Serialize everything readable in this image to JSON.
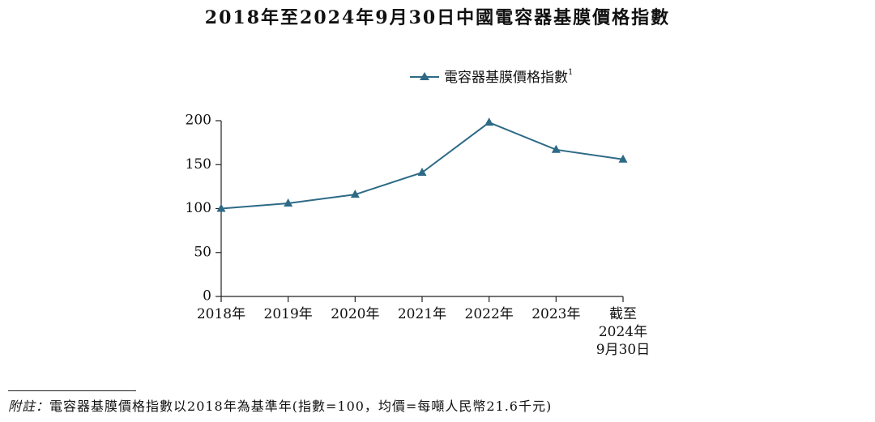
{
  "colors": {
    "series": "#2d6a86",
    "axis": "#222222"
  },
  "chart_data": {
    "type": "line",
    "title": "2018年至2024年9月30日中國電容器基膜價格指數",
    "categories": [
      "2018年",
      "2019年",
      "2020年",
      "2021年",
      "2022年",
      "2023年",
      "截至\n2024年\n9月30日"
    ],
    "series": [
      {
        "name": "電容器基膜價格指數",
        "marker": "triangle",
        "values": [
          100,
          106,
          116,
          141,
          198,
          167,
          156
        ]
      }
    ],
    "legend": {
      "label": "電容器基膜價格指數",
      "superscript": "1",
      "placement": "top-right"
    },
    "yticks": [
      0,
      50,
      100,
      150,
      200
    ],
    "ylim": [
      0,
      200
    ],
    "xlabel": "",
    "ylabel": "",
    "grid": false
  },
  "footnote": {
    "label": "附註：",
    "text": "電容器基膜價格指數以2018年為基準年(指數=100，均價=每噸人民幣21.6千元)"
  }
}
